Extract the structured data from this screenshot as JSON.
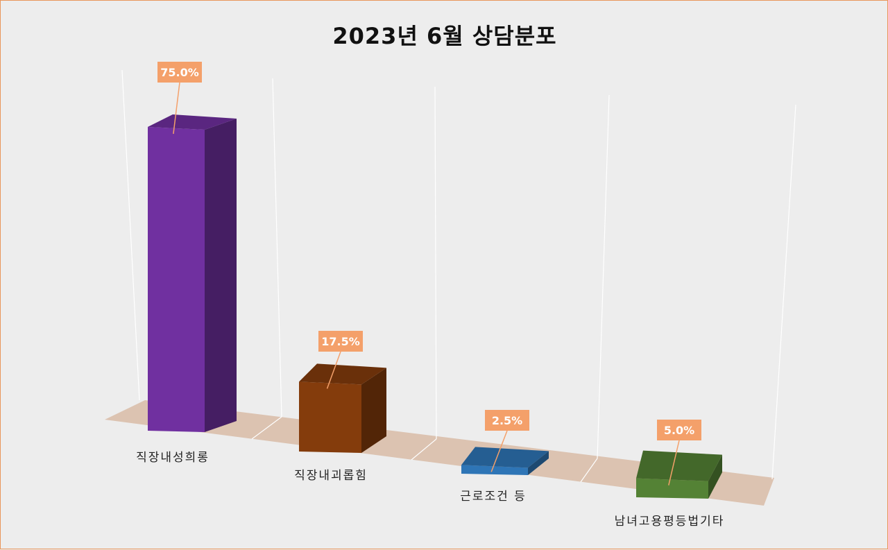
{
  "chart_data": {
    "type": "bar",
    "title": "2023년 6월 상담분포",
    "categories": [
      "직장내성희롱",
      "직장내괴롭힘",
      "근로조건 등",
      "남녀고용평등법기타"
    ],
    "values": [
      75.0,
      17.5,
      2.5,
      5.0
    ],
    "value_labels": [
      "75.0%",
      "17.5%",
      "2.5%",
      "5.0%"
    ],
    "colors": [
      "#7030a0",
      "#843c0c",
      "#2e75b6",
      "#548235"
    ],
    "label_box_color": "#f4a06a",
    "floor_color": "#dcc3b1",
    "grid": true,
    "legend": "none",
    "ylim": [
      0,
      80
    ],
    "style": "3d-column"
  }
}
